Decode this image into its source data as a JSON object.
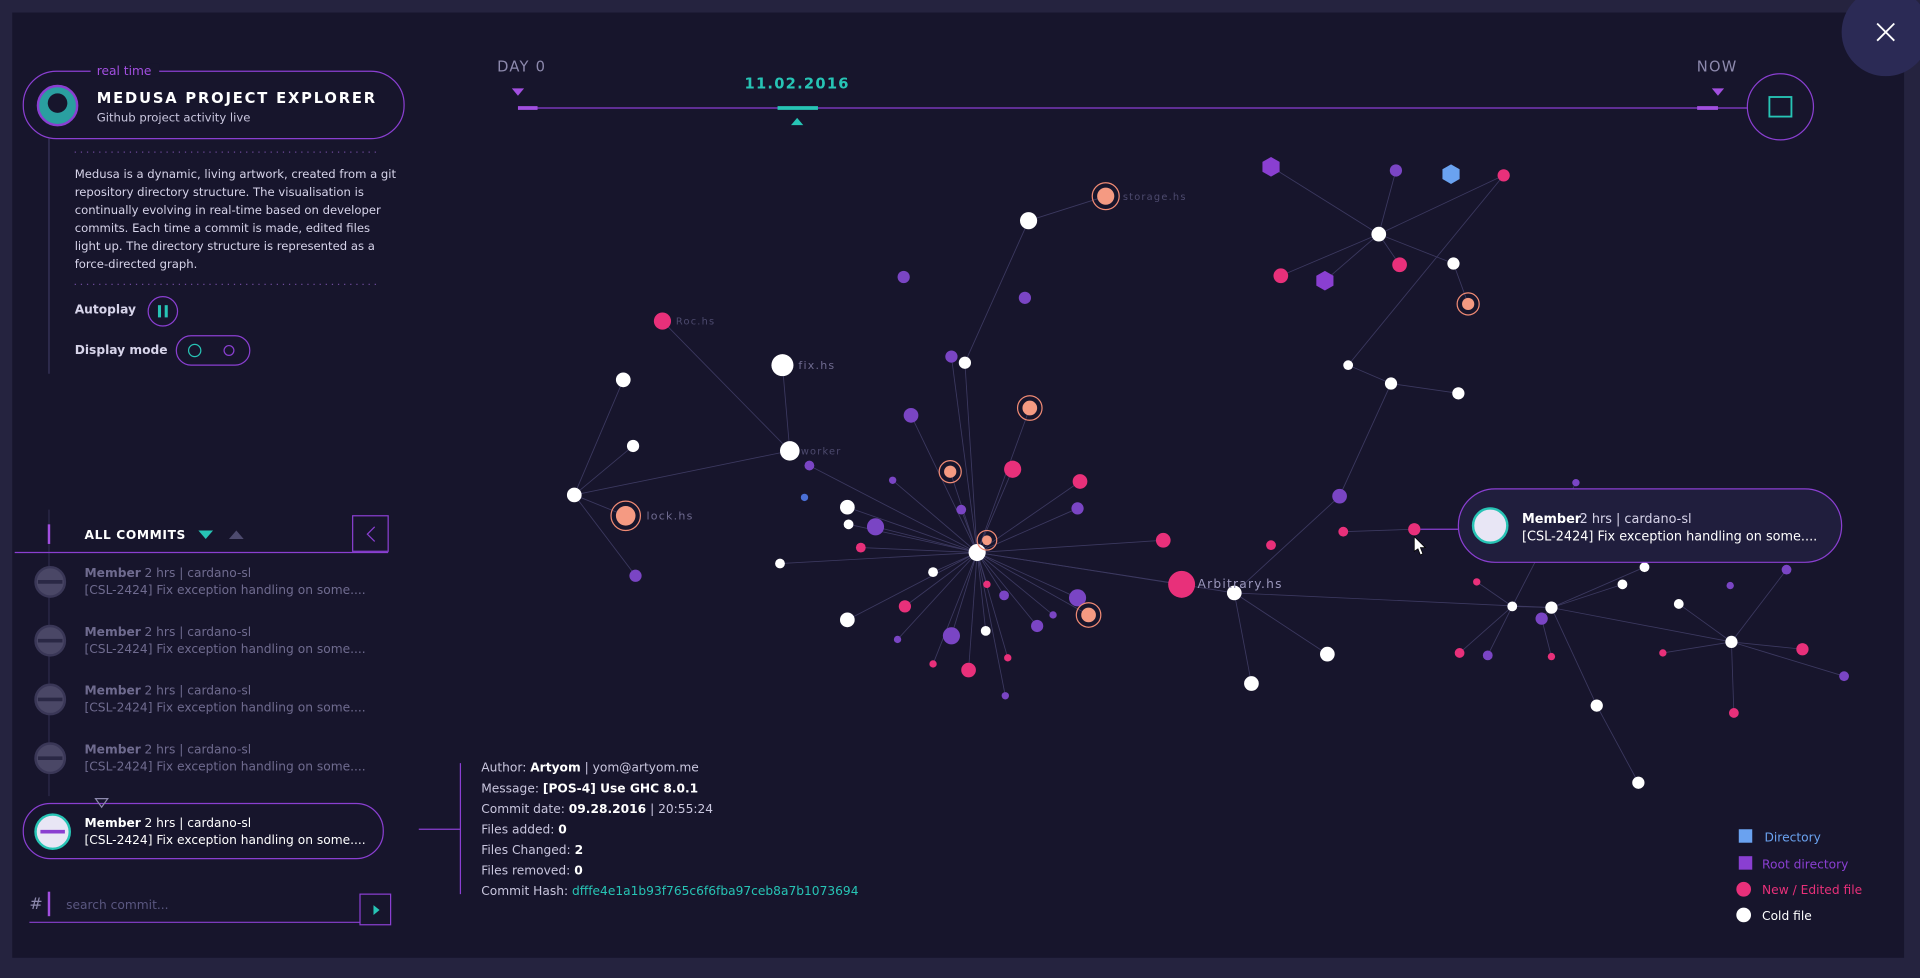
{
  "header": {
    "tag": "real time",
    "title": "MEDUSA PROJECT EXPLORER",
    "subtitle": "Github project activity live"
  },
  "description": [
    "Medusa is a dynamic, living artwork, created from a git",
    "repository directory structure. The visualisation is",
    "continually evolving in real-time based on developer",
    "commits. Each time a commit is made, edited files",
    "light up. The directory structure is represented as a",
    "force-directed graph."
  ],
  "controls": {
    "autoplay": "Autoplay",
    "display_mode": "Display mode"
  },
  "timeline": {
    "start": "DAY 0",
    "end": "NOW",
    "current": "11.02.2016"
  },
  "commits": {
    "header": "ALL COMMITS",
    "items": [
      {
        "author": "Member",
        "meta": "2 hrs | cardano-sl",
        "message": "[CSL-2424] Fix exception handling on some...."
      },
      {
        "author": "Member",
        "meta": "2 hrs | cardano-sl",
        "message": "[CSL-2424] Fix exception handling on some...."
      },
      {
        "author": "Member",
        "meta": "2 hrs | cardano-sl",
        "message": "[CSL-2424] Fix exception handling on some...."
      },
      {
        "author": "Member",
        "meta": "2 hrs | cardano-sl",
        "message": "[CSL-2424] Fix exception handling on some...."
      },
      {
        "author": "Member",
        "meta": "2 hrs | cardano-sl",
        "message": "[CSL-2424] Fix exception handling on some...."
      }
    ],
    "search_placeholder": "search commit..."
  },
  "details": [
    {
      "label": "Author:",
      "value": "Artyom",
      "extra": "| yom@artyom.me"
    },
    {
      "label": "Message:",
      "value": "[POS-4] Use GHC 8.0.1"
    },
    {
      "label": "Commit date:",
      "value": "09.28.2016",
      "extra": "| 20:55:24"
    },
    {
      "label": "Files added:",
      "value": "0"
    },
    {
      "label": "Files Changed:",
      "value": "2"
    },
    {
      "label": "Files removed:",
      "value": "0"
    },
    {
      "label": "Commit Hash:",
      "value": "dfffe4e1a1b93f765c6f6fba97ceb8a7b1073694"
    }
  ],
  "graph": {
    "labels": [
      "storage.hs",
      "Roc.hs",
      "fix.hs",
      "worker",
      "lock.hs",
      "Arbitrary.hs"
    ]
  },
  "tooltip": {
    "author": "Member",
    "meta": "2 hrs | cardano-sl",
    "message": "[CSL-2424] Fix exception handling on some...."
  },
  "legend": [
    "Directory",
    "Root directory",
    "New / Edited file",
    "Cold file"
  ]
}
